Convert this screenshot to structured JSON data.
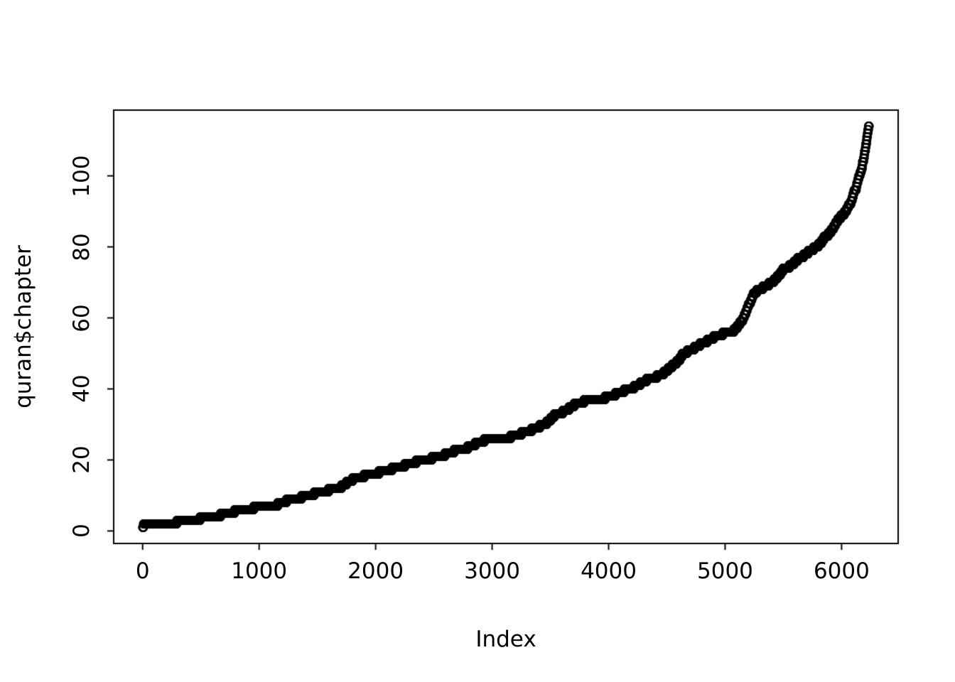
{
  "figure": {
    "background": "#ffffff",
    "xlabel": "Index",
    "ylabel": "quran$chapter"
  },
  "chart_data": {
    "type": "scatter",
    "title": "",
    "xlabel": "Index",
    "ylabel": "quran$chapter",
    "marker": "open-circle",
    "point_color": "#000000",
    "grid": false,
    "legend": "none",
    "x_ticks": [
      0,
      1000,
      2000,
      3000,
      4000,
      5000,
      6000
    ],
    "y_ticks": [
      0,
      20,
      40,
      60,
      80,
      100
    ],
    "xlim": [
      -248.4,
      6485.4
    ],
    "ylim": [
      -3.52,
      118.52
    ],
    "n_points": 6236,
    "n_chapters": 114,
    "series_definition": "Point i is (verse index i, chapter number of verse i), i = 1..6236; chapter c covers verses_per_chapter[c-1] consecutive indices, so y rises stepwise from 1 to 114",
    "verses_per_chapter": [
      7,
      286,
      200,
      176,
      120,
      165,
      206,
      75,
      129,
      109,
      123,
      111,
      43,
      52,
      99,
      128,
      111,
      110,
      98,
      135,
      112,
      78,
      118,
      64,
      77,
      227,
      93,
      88,
      69,
      60,
      34,
      30,
      73,
      54,
      45,
      83,
      182,
      88,
      75,
      85,
      54,
      53,
      89,
      59,
      37,
      35,
      38,
      29,
      18,
      45,
      60,
      49,
      62,
      55,
      78,
      96,
      29,
      22,
      24,
      13,
      14,
      11,
      11,
      18,
      12,
      12,
      30,
      52,
      52,
      44,
      28,
      28,
      20,
      56,
      40,
      31,
      50,
      40,
      46,
      42,
      29,
      19,
      36,
      25,
      22,
      17,
      19,
      26,
      30,
      20,
      15,
      21,
      11,
      8,
      8,
      19,
      5,
      8,
      8,
      11,
      11,
      8,
      3,
      9,
      5,
      4,
      7,
      3,
      6,
      3,
      5,
      4,
      5,
      6
    ]
  }
}
